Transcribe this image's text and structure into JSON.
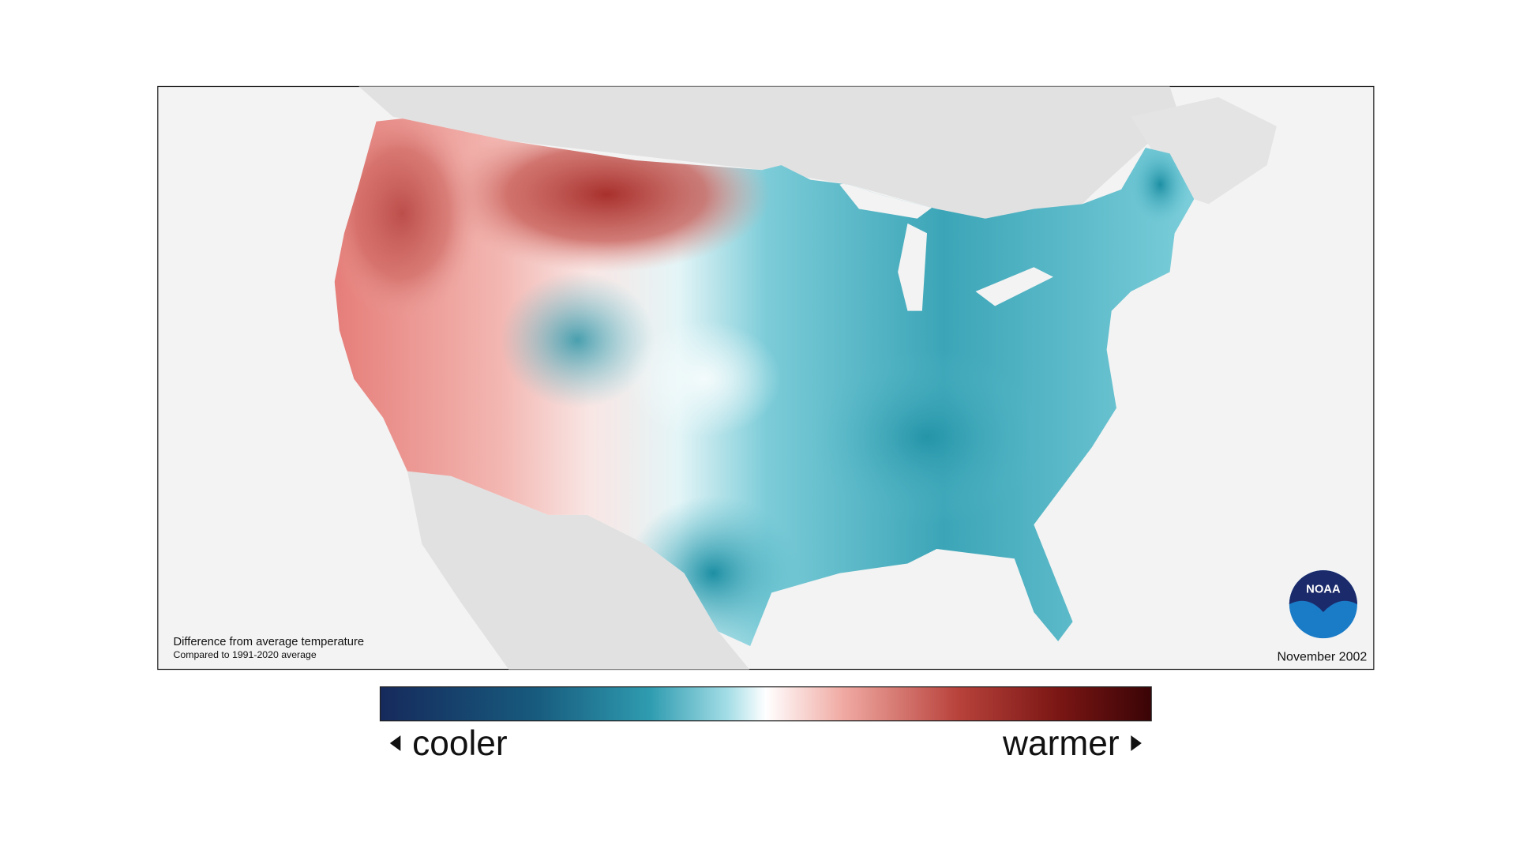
{
  "map": {
    "caption": "Difference from average temperature",
    "subcaption": "Compared to 1991-2020 average",
    "date": "November 2002",
    "logo": "NOAA"
  },
  "legend": {
    "low_label": "cooler",
    "high_label": "warmer"
  }
}
